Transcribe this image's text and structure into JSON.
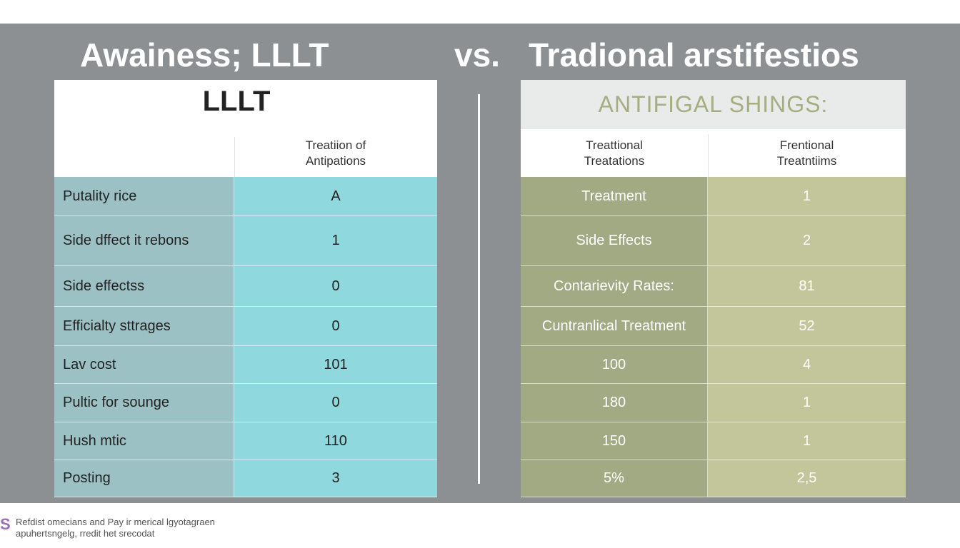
{
  "header": {
    "title_left": "Awainess; LLLT",
    "vs": "vs.",
    "title_right": "Tradional arstifestios"
  },
  "left_table": {
    "title": "LLLT",
    "column_header": [
      "Treatiion of",
      "Antipations"
    ],
    "rows": [
      [
        "Putality rice",
        "A"
      ],
      [
        "Side dffect it rebons",
        "1"
      ],
      [
        "Side effectss",
        "0"
      ],
      [
        "Efficialty sttrages",
        "0"
      ],
      [
        "Lav cost",
        "101"
      ],
      [
        "Pultic for sounge",
        "0"
      ],
      [
        "Hush mtic",
        "110"
      ],
      [
        "Posting",
        "3"
      ]
    ]
  },
  "right_table": {
    "title": "ANTIFIGAL SHINGS:",
    "column_headers": [
      [
        "Treattional",
        "Treatations"
      ],
      [
        "Frentional",
        "Treatntiims"
      ]
    ],
    "rows": [
      [
        "Treatment",
        "1"
      ],
      [
        "Side Effects",
        "2"
      ],
      [
        "Contarievity Rates:",
        "81"
      ],
      [
        "Cuntranlical Treatment",
        "52"
      ],
      [
        "100",
        "4"
      ],
      [
        "180",
        "1"
      ],
      [
        "150",
        "1"
      ],
      [
        "5%",
        "2,5"
      ]
    ]
  },
  "footer": {
    "logo": "S",
    "lines": [
      "Refdist omecians and Pay ir merical lgyotagraen",
      "apuhertsngelg, rredit het srecodat"
    ]
  }
}
